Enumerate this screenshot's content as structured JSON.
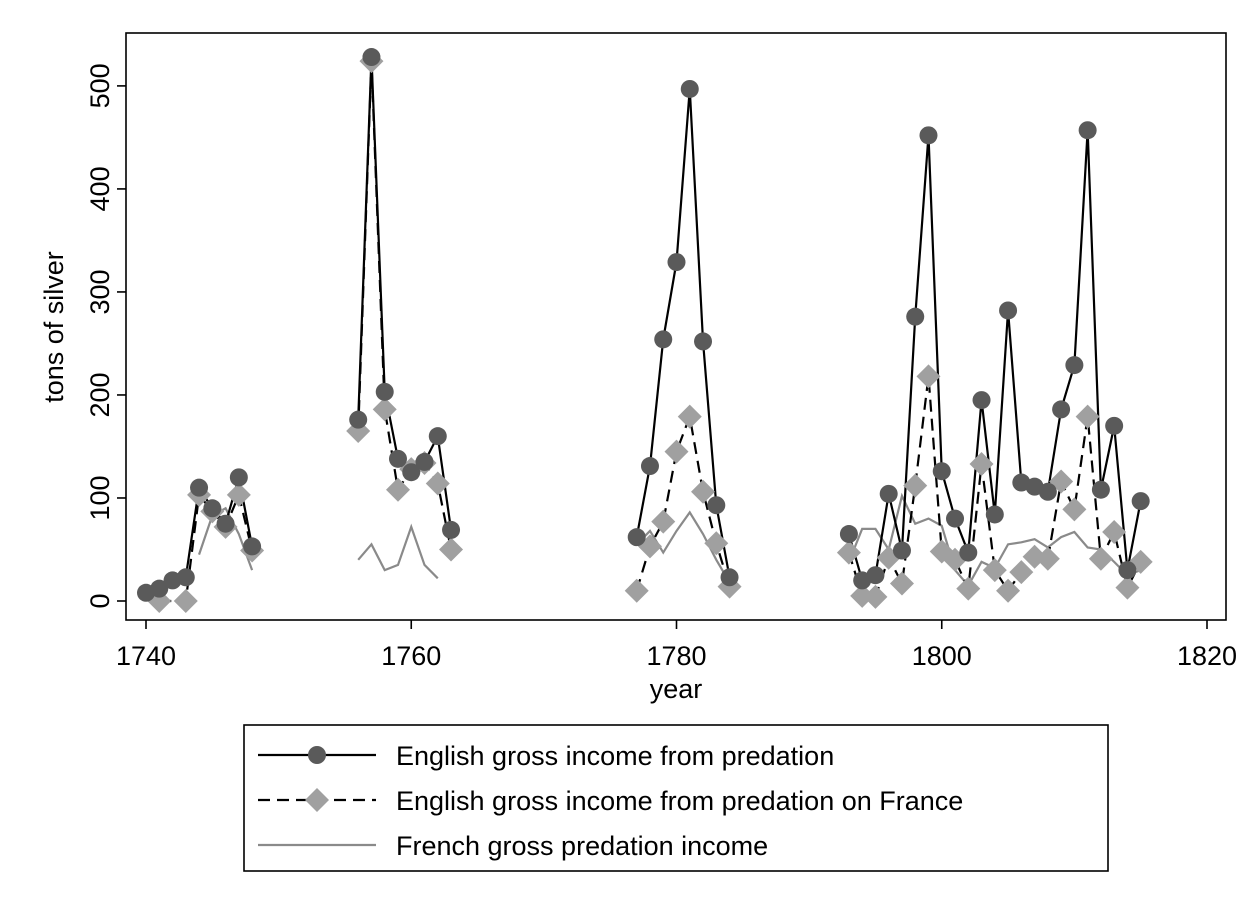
{
  "chart_data": {
    "type": "line",
    "title": "",
    "xlabel": "year",
    "ylabel": "tons of silver",
    "xlim": [
      1740,
      1820
    ],
    "ylim": [
      0,
      530
    ],
    "xticks": [
      1740,
      1760,
      1780,
      1800,
      1820
    ],
    "yticks": [
      0,
      100,
      200,
      300,
      400,
      500
    ],
    "grid": false,
    "legend_position": "bottom",
    "series": [
      {
        "name": "English gross income from predation",
        "style": "solid-line-circle-markers",
        "color": "#000000",
        "marker_color": "#5a5a5a",
        "segments": [
          [
            [
              1740,
              8
            ],
            [
              1741,
              12
            ],
            [
              1742,
              20
            ],
            [
              1743,
              23
            ],
            [
              1744,
              110
            ],
            [
              1745,
              90
            ],
            [
              1746,
              75
            ],
            [
              1747,
              120
            ],
            [
              1748,
              53
            ]
          ],
          [
            [
              1756,
              176
            ],
            [
              1757,
              528
            ],
            [
              1758,
              203
            ],
            [
              1759,
              138
            ],
            [
              1760,
              125
            ],
            [
              1761,
              135
            ],
            [
              1762,
              160
            ],
            [
              1763,
              69
            ]
          ],
          [
            [
              1777,
              62
            ],
            [
              1778,
              131
            ],
            [
              1779,
              254
            ],
            [
              1780,
              329
            ],
            [
              1781,
              497
            ],
            [
              1782,
              252
            ],
            [
              1783,
              93
            ],
            [
              1784,
              23
            ]
          ],
          [
            [
              1793,
              65
            ],
            [
              1794,
              20
            ],
            [
              1795,
              25
            ],
            [
              1796,
              104
            ],
            [
              1797,
              49
            ],
            [
              1798,
              276
            ],
            [
              1799,
              452
            ],
            [
              1800,
              126
            ],
            [
              1801,
              80
            ],
            [
              1802,
              47
            ],
            [
              1803,
              195
            ],
            [
              1804,
              84
            ],
            [
              1805,
              282
            ],
            [
              1806,
              115
            ],
            [
              1807,
              111
            ],
            [
              1808,
              106
            ],
            [
              1809,
              186
            ],
            [
              1810,
              229
            ],
            [
              1811,
              457
            ],
            [
              1812,
              108
            ],
            [
              1813,
              170
            ],
            [
              1814,
              30
            ],
            [
              1815,
              97
            ]
          ]
        ]
      },
      {
        "name": "English gross income from predation on France",
        "style": "dashed-line-diamond-markers",
        "color": "#000000",
        "marker_color": "#a0a0a0",
        "segments": [
          [
            [
              1741,
              0
            ],
            [
              1743,
              0
            ],
            [
              1744,
              103
            ],
            [
              1745,
              87
            ],
            [
              1746,
              72
            ],
            [
              1747,
              103
            ],
            [
              1748,
              49
            ]
          ],
          [
            [
              1756,
              165
            ],
            [
              1757,
              524
            ],
            [
              1758,
              186
            ],
            [
              1759,
              108
            ],
            [
              1760,
              128
            ],
            [
              1761,
              134
            ],
            [
              1762,
              114
            ],
            [
              1763,
              50
            ]
          ],
          [
            [
              1777,
              10
            ],
            [
              1778,
              53
            ],
            [
              1779,
              77
            ],
            [
              1780,
              145
            ],
            [
              1781,
              179
            ],
            [
              1782,
              106
            ],
            [
              1783,
              56
            ],
            [
              1784,
              14
            ]
          ],
          [
            [
              1793,
              47
            ],
            [
              1794,
              5
            ],
            [
              1795,
              4
            ],
            [
              1796,
              42
            ],
            [
              1797,
              17
            ],
            [
              1798,
              112
            ],
            [
              1799,
              218
            ],
            [
              1800,
              48
            ],
            [
              1801,
              40
            ],
            [
              1802,
              12
            ],
            [
              1803,
              133
            ],
            [
              1804,
              30
            ],
            [
              1805,
              10
            ],
            [
              1806,
              28
            ],
            [
              1807,
              43
            ],
            [
              1808,
              41
            ],
            [
              1809,
              116
            ],
            [
              1810,
              89
            ],
            [
              1811,
              179
            ],
            [
              1812,
              41
            ],
            [
              1813,
              67
            ],
            [
              1814,
              13
            ],
            [
              1815,
              38
            ]
          ]
        ]
      },
      {
        "name": "French gross predation income",
        "style": "solid-line",
        "color": "#8a8a8a",
        "segments": [
          [
            [
              1744,
              45
            ],
            [
              1745,
              83
            ],
            [
              1746,
              90
            ],
            [
              1747,
              65
            ],
            [
              1748,
              30
            ]
          ],
          [
            [
              1756,
              40
            ],
            [
              1757,
              55
            ],
            [
              1758,
              30
            ],
            [
              1759,
              35
            ],
            [
              1760,
              72
            ],
            [
              1761,
              35
            ],
            [
              1762,
              22
            ]
          ],
          [
            [
              1777,
              55
            ],
            [
              1778,
              68
            ],
            [
              1779,
              47
            ],
            [
              1780,
              68
            ],
            [
              1781,
              86
            ],
            [
              1782,
              65
            ],
            [
              1783,
              40
            ],
            [
              1784,
              18
            ]
          ],
          [
            [
              1793,
              38
            ],
            [
              1794,
              70
            ],
            [
              1795,
              70
            ],
            [
              1796,
              50
            ],
            [
              1797,
              102
            ],
            [
              1798,
              75
            ],
            [
              1799,
              80
            ],
            [
              1800,
              73
            ],
            [
              1801,
              30
            ],
            [
              1802,
              15
            ],
            [
              1803,
              38
            ],
            [
              1804,
              32
            ],
            [
              1805,
              55
            ],
            [
              1806,
              57
            ],
            [
              1807,
              60
            ],
            [
              1808,
              52
            ],
            [
              1809,
              62
            ],
            [
              1810,
              67
            ],
            [
              1811,
              52
            ],
            [
              1812,
              50
            ],
            [
              1813,
              38
            ],
            [
              1814,
              25
            ],
            [
              1815,
              30
            ]
          ]
        ]
      }
    ]
  }
}
